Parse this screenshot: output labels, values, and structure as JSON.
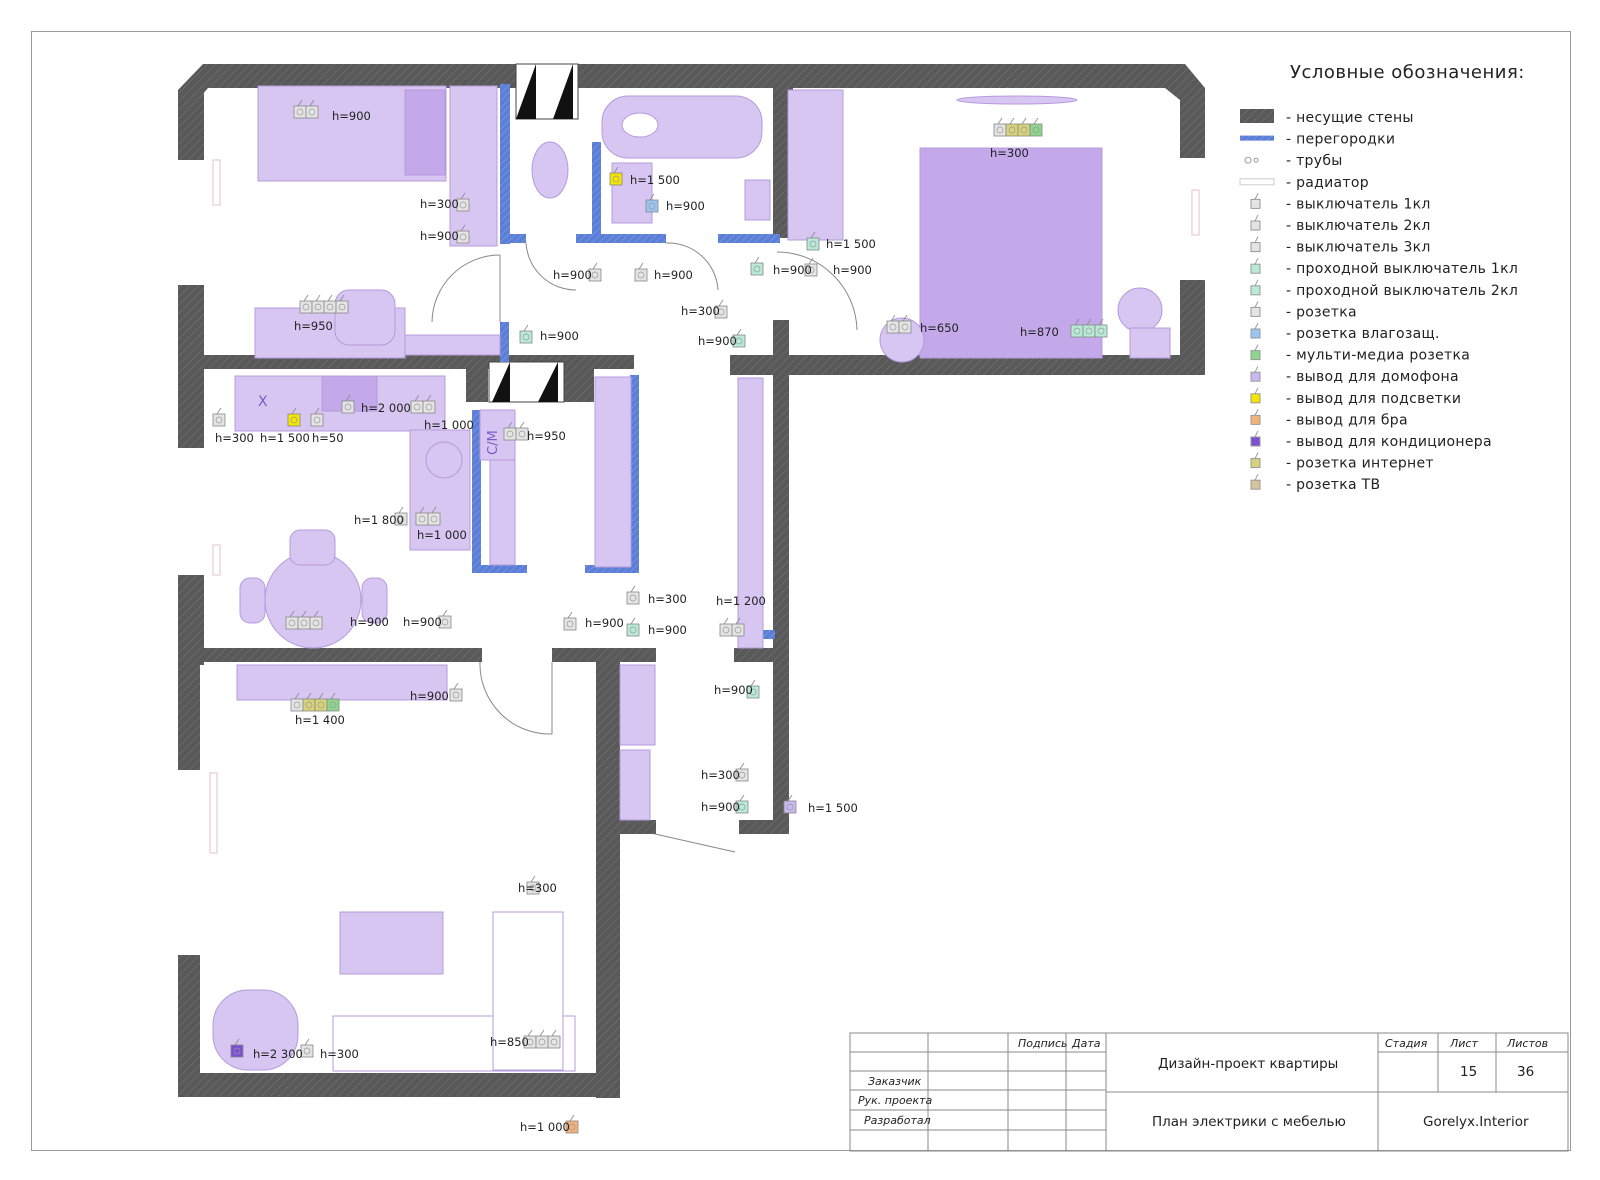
{
  "legend": {
    "title": "Условные обозначения:",
    "items": [
      {
        "label": "- несущие стены",
        "kind": "wall",
        "color": "#555555"
      },
      {
        "label": "- перегородки",
        "kind": "partition",
        "color": "#5b7fd6"
      },
      {
        "label": "- трубы",
        "kind": "pipe",
        "color": "#aaaaaa"
      },
      {
        "label": "- радиатор",
        "kind": "radiator",
        "color": "#dddddd"
      },
      {
        "label": "- выключатель 1кл",
        "kind": "switch",
        "color": "#e4e4e4"
      },
      {
        "label": "- выключатель 2кл",
        "kind": "switch",
        "color": "#e4e4e4"
      },
      {
        "label": "- выключатель 3кл",
        "kind": "switch",
        "color": "#e4e4e4"
      },
      {
        "label": "- проходной выключатель 1кл",
        "kind": "switch",
        "color": "#b8ead8"
      },
      {
        "label": "- проходной выключатель 2кл",
        "kind": "switch",
        "color": "#b8ead8"
      },
      {
        "label": "- розетка",
        "kind": "socket",
        "color": "#e4e4e4"
      },
      {
        "label": "- розетка влагозащ.",
        "kind": "socket",
        "color": "#9cc4f0"
      },
      {
        "label": "- мульти-медиа розетка",
        "kind": "socket",
        "color": "#8ed68e"
      },
      {
        "label": "- вывод для домофона",
        "kind": "outlet",
        "color": "#c8b8f0"
      },
      {
        "label": "- вывод для подсветки",
        "kind": "outlet",
        "color": "#f5e600"
      },
      {
        "label": "- вывод для бра",
        "kind": "outlet",
        "color": "#f2b27a"
      },
      {
        "label": "- вывод для кондиционера",
        "kind": "outlet",
        "color": "#7b4fd1"
      },
      {
        "label": "- розетка интернет",
        "kind": "socket",
        "color": "#d8d27a"
      },
      {
        "label": "- розетка ТВ",
        "kind": "socket",
        "color": "#d8c49a"
      }
    ]
  },
  "plan": {
    "colors": {
      "wall": "#555555",
      "partition": "#5b7fd6",
      "furniture": "#d7c6f1",
      "furniture_dark": "#c3a9ea",
      "furniture_stroke": "#b49bdc"
    },
    "kitchen_mark": "Х",
    "fridge_mark": "С/М",
    "labels": [
      "h=900",
      "h=300",
      "h=900",
      "h=1 500",
      "h=900",
      "h=900",
      "h=900",
      "h=1 500",
      "h=900",
      "h=900",
      "h=300",
      "h=950",
      "h=900",
      "h=300",
      "h=900",
      "h=650",
      "h=870",
      "h=300",
      "h=1 500",
      "h=50",
      "h=2 000",
      "h=1 000",
      "h=950",
      "h=1 800",
      "h=1 000",
      "h=900",
      "h=900",
      "h=900",
      "h=300",
      "h=900",
      "h=1 200",
      "h=1 400",
      "h=900",
      "h=900",
      "h=300",
      "h=900",
      "h=1 500",
      "h=300",
      "h=850",
      "h=2 300",
      "h=300",
      "h=1 000"
    ]
  },
  "title_block": {
    "headers": {
      "signature": "Подпись",
      "date": "Дата",
      "stage": "Стадия",
      "sheet": "Лист",
      "sheets": "Листов"
    },
    "rows": {
      "client": "Заказчик",
      "project_lead": "Рук. проекта",
      "developer": "Разработал"
    },
    "project": "Дизайн-проект квартиры",
    "drawing": "План электрики с мебелью",
    "sheet_no": "15",
    "sheets_total": "36",
    "company": "Gorelyx.Interior"
  }
}
